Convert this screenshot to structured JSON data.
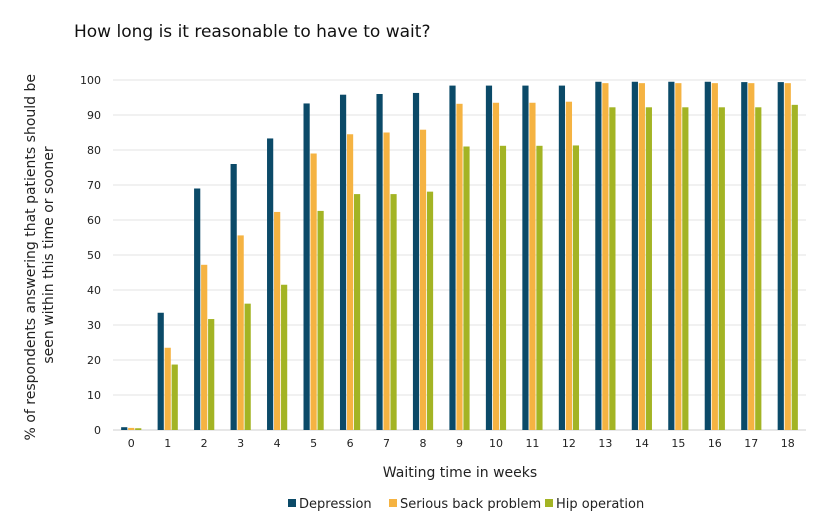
{
  "chart_data": {
    "type": "bar",
    "title": "How long is it reasonable to have to wait?",
    "xlabel": "Waiting time in weeks",
    "ylabel": "% of respondents answering that patients should be seen within this time or sooner",
    "ylabel_lines": [
      "% of respondents answering that patients should be",
      "seen within this time or sooner"
    ],
    "categories": [
      "0",
      "1",
      "2",
      "3",
      "4",
      "5",
      "6",
      "7",
      "8",
      "9",
      "10",
      "11",
      "12",
      "13",
      "14",
      "15",
      "16",
      "17",
      "18"
    ],
    "ylim": [
      0,
      100
    ],
    "yticks": [
      0,
      10,
      20,
      30,
      40,
      50,
      60,
      70,
      80,
      90,
      100
    ],
    "grid": true,
    "legend_position": "bottom",
    "series": [
      {
        "name": "Depression",
        "color": "#0b4a68",
        "values": [
          0.8,
          33.5,
          69,
          76,
          83.3,
          93.3,
          95.8,
          96,
          96.3,
          98.4,
          98.4,
          98.4,
          98.4,
          99.5,
          99.5,
          99.5,
          99.5,
          99.4,
          99.4
        ]
      },
      {
        "name": "Serious back problem",
        "color": "#f5b342",
        "values": [
          0.6,
          23.5,
          47.2,
          55.6,
          62.3,
          79,
          84.5,
          85,
          85.8,
          93.2,
          93.5,
          93.5,
          93.8,
          99.1,
          99.1,
          99.1,
          99.1,
          99.1,
          99.1
        ]
      },
      {
        "name": "Hip operation",
        "color": "#a3b424",
        "values": [
          0.5,
          18.7,
          31.7,
          36.1,
          41.5,
          62.6,
          67.4,
          67.4,
          68.1,
          81,
          81.2,
          81.2,
          81.3,
          92.2,
          92.2,
          92.2,
          92.2,
          92.2,
          92.9
        ]
      }
    ]
  }
}
